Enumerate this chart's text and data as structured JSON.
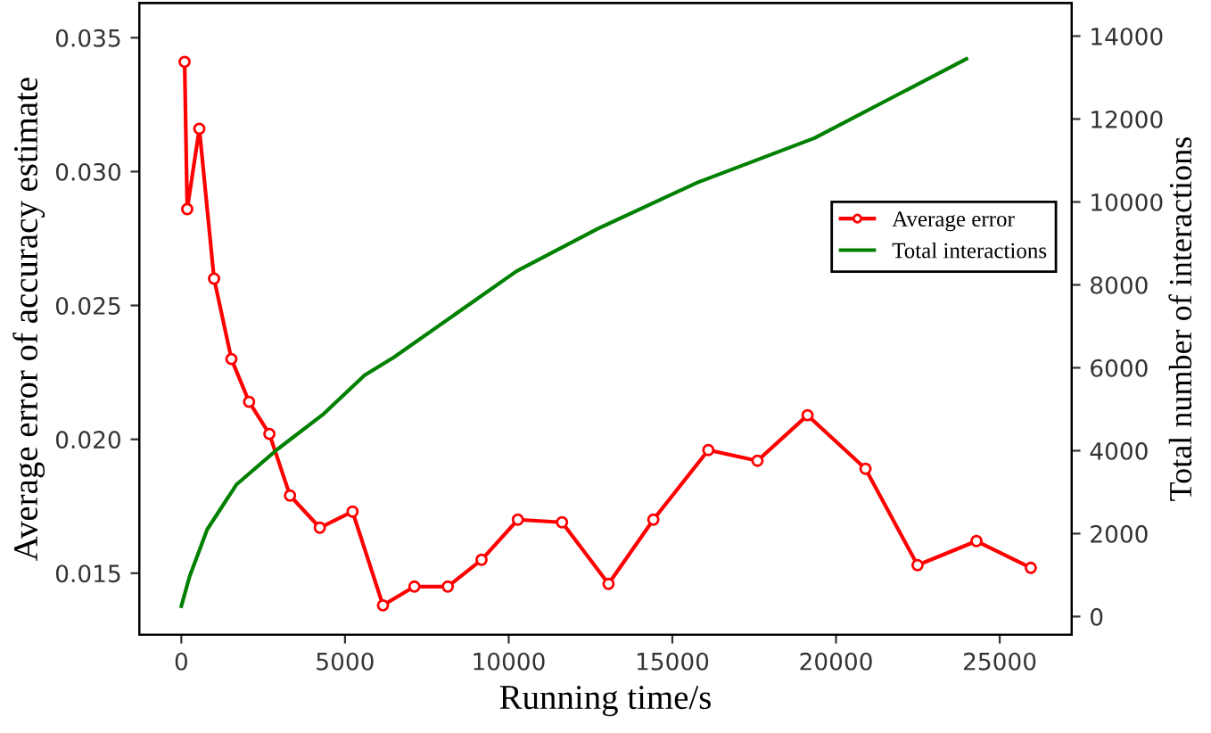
{
  "chart_data": {
    "type": "line",
    "xlabel": "Running time/s",
    "ylabel": "Average error of accuracy estimate",
    "y2label": "Total number of interactions",
    "xlim": [
      -1285,
      27200
    ],
    "xticks": [
      0,
      5000,
      10000,
      15000,
      20000,
      25000
    ],
    "ylim": [
      0.0127,
      0.0363
    ],
    "yticks": [
      {
        "value": 0.015,
        "label": "0.015"
      },
      {
        "value": 0.02,
        "label": "0.020"
      },
      {
        "value": 0.025,
        "label": "0.025"
      },
      {
        "value": 0.03,
        "label": "0.030"
      },
      {
        "value": 0.035,
        "label": "0.035"
      }
    ],
    "y2lim": [
      -440,
      14800
    ],
    "y2ticks": [
      0,
      2000,
      4000,
      6000,
      8000,
      10000,
      12000,
      14000
    ],
    "grid": false,
    "legend": "right",
    "series": [
      {
        "name": "Average error",
        "color": "#ff0000",
        "marker": "circle",
        "x": [
          100,
          180,
          550,
          1000,
          1530,
          2070,
          2690,
          3320,
          4230,
          5230,
          6160,
          7120,
          8140,
          9170,
          10280,
          11630,
          13050,
          14420,
          16100,
          17600,
          19130,
          20900,
          22490,
          24290,
          25950
        ],
        "values": [
          0.0341,
          0.0286,
          0.0316,
          0.026,
          0.023,
          0.0214,
          0.0202,
          0.0179,
          0.0167,
          0.0173,
          0.0138,
          0.0145,
          0.0145,
          0.0155,
          0.017,
          0.0169,
          0.0146,
          0.017,
          0.0196,
          0.0192,
          0.0209,
          0.0189,
          0.0153,
          0.0162,
          0.0152
        ]
      },
      {
        "name": "Total interactions",
        "color": "#008000",
        "marker": "none",
        "axis": "y2",
        "x": [
          0,
          250,
          790,
          1680,
          2930,
          4350,
          5600,
          6490,
          10240,
          12740,
          15770,
          19340,
          23980
        ],
        "values": [
          250,
          960,
          2100,
          3180,
          4030,
          4890,
          5820,
          6250,
          8330,
          9360,
          10470,
          11540,
          13450
        ]
      }
    ]
  }
}
